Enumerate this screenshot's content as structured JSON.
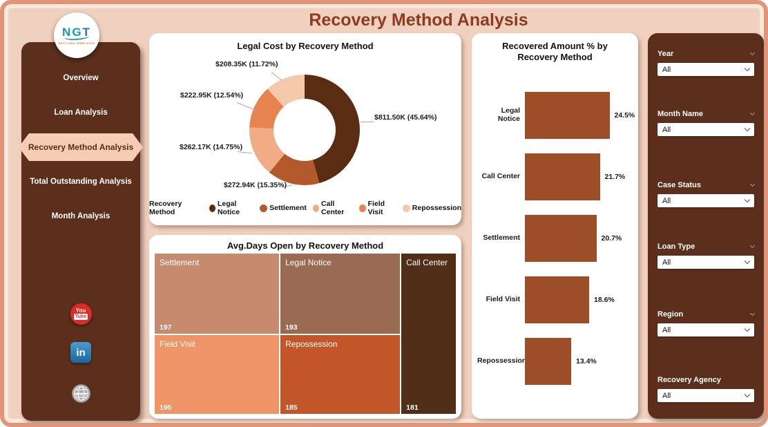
{
  "header": {
    "title": "Recovery Method Analysis"
  },
  "theme": {
    "background": "#F0D0BE",
    "frame_border": "#E09579",
    "sidebar_bg": "#5B2F1C",
    "active_item_bg": "#F6CDB4",
    "title_color": "#8E3B1F"
  },
  "sidebar": {
    "logo_text_primary": "NG",
    "logo_text_accent": "T",
    "logo_subtext": "NEXT GEN TEMPLATES",
    "items": [
      {
        "label": "Overview",
        "active": false
      },
      {
        "label": "Loan Analysis",
        "active": false
      },
      {
        "label": "Recovery Method Analysis",
        "active": true
      },
      {
        "label": "Total Outstanding Analysis",
        "active": false
      },
      {
        "label": "Month Analysis",
        "active": false
      }
    ],
    "social": {
      "youtube_line1": "You",
      "youtube_line2": "Tube",
      "linkedin_label": "in",
      "website_label": "www"
    }
  },
  "filters": [
    {
      "label": "Year",
      "value": "All"
    },
    {
      "label": "Month Name",
      "value": "All"
    },
    {
      "label": "Case Status",
      "value": "All"
    },
    {
      "label": "Loan Type",
      "value": "All"
    },
    {
      "label": "Region",
      "value": "All"
    },
    {
      "label": "Recovery Agency",
      "value": "All"
    }
  ],
  "chart_data": [
    {
      "type": "pie",
      "variant": "donut",
      "title": "Legal Cost by Recovery Method",
      "legend_title": "Recovery Method",
      "legend_position": "bottom",
      "categories": [
        "Legal Notice",
        "Settlement",
        "Call Center",
        "Field Visit",
        "Repossession"
      ],
      "values_usd_k": [
        811.5,
        272.94,
        262.17,
        222.95,
        208.35
      ],
      "percents": [
        45.64,
        15.35,
        14.75,
        12.54,
        11.72
      ],
      "labels": [
        "$811.50K (45.64%)",
        "$272.94K (15.35%)",
        "$262.17K (14.75%)",
        "$222.95K (12.54%)",
        "$208.35K (11.72%)"
      ],
      "colors": [
        "#5A2C12",
        "#B4592C",
        "#F0AC85",
        "#E6834E",
        "#F4C9AA"
      ]
    },
    {
      "type": "bar",
      "orientation": "horizontal",
      "title": "Recovered Amount % by Recovery Method",
      "categories": [
        "Legal Notice",
        "Call Center",
        "Settlement",
        "Field Visit",
        "Repossession"
      ],
      "values": [
        24.5,
        21.7,
        20.7,
        18.6,
        13.4
      ],
      "labels": [
        "24.5%",
        "21.7%",
        "20.7%",
        "18.6%",
        "13.4%"
      ],
      "bar_color": "#9C4E26",
      "xlim": [
        0,
        25
      ],
      "grid": false
    },
    {
      "type": "treemap",
      "title": "Avg.Days Open by Recovery Method",
      "items": [
        {
          "label": "Settlement",
          "value": 197,
          "color": "#C68B6E"
        },
        {
          "label": "Legal Notice",
          "value": 193,
          "color": "#9A6A52"
        },
        {
          "label": "Call Center",
          "value": 181,
          "color": "#512E18"
        },
        {
          "label": "Field Visit",
          "value": 195,
          "color": "#EE9466"
        },
        {
          "label": "Repossession",
          "value": 185,
          "color": "#C25629"
        }
      ]
    }
  ]
}
